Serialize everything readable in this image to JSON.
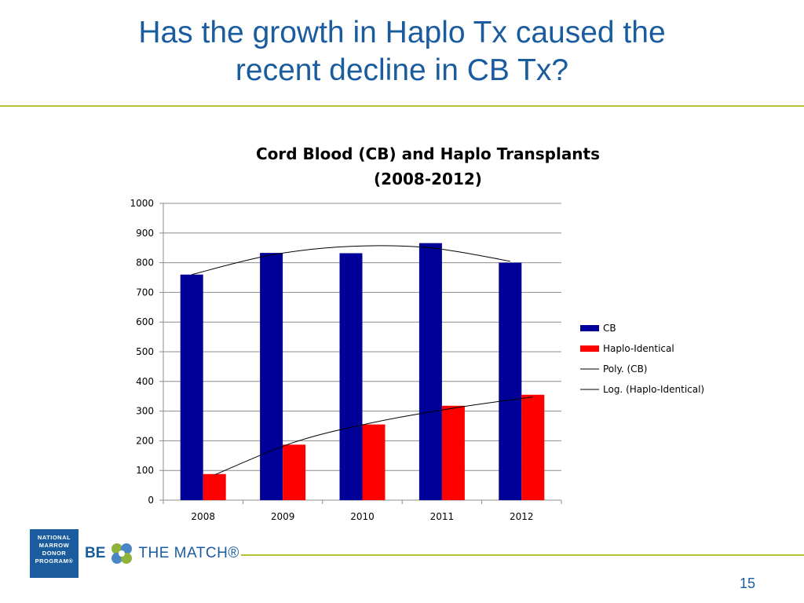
{
  "slide": {
    "title_line1": "Has the growth in Haplo Tx caused the",
    "title_line2": "recent decline in CB Tx?",
    "page_number": "15"
  },
  "logos": {
    "nmdp_lines": [
      "NATIONAL",
      "MARROW",
      "DONOR",
      "PROGRAM®"
    ],
    "btm_be": "BE",
    "btm_match": "THE MATCH®"
  },
  "colors": {
    "title": "#1a5c9e",
    "accent_rule": "#b5c234",
    "cb": "#000099",
    "haplo": "#ff0000",
    "trend": "#000000"
  },
  "chart_data": {
    "type": "bar",
    "title_line1": "Cord Blood (CB) and Haplo Transplants",
    "title_line2": "(2008-2012)",
    "categories": [
      "2008",
      "2009",
      "2010",
      "2011",
      "2012"
    ],
    "series": [
      {
        "name": "CB",
        "values": [
          760,
          833,
          832,
          866,
          800
        ]
      },
      {
        "name": "Haplo-Identical",
        "values": [
          88,
          187,
          255,
          318,
          355
        ]
      }
    ],
    "trendlines": [
      {
        "name": "Poly. (CB)",
        "type": "polynomial",
        "values": [
          760,
          826,
          855,
          850,
          805
        ]
      },
      {
        "name": "Log. (Haplo-Identical)",
        "type": "logarithmic",
        "values": [
          85,
          195,
          262,
          310,
          348
        ]
      }
    ],
    "ylim": [
      0,
      1000
    ],
    "yticks": [
      0,
      100,
      200,
      300,
      400,
      500,
      600,
      700,
      800,
      900,
      1000
    ],
    "grid": true,
    "legend": "right"
  }
}
